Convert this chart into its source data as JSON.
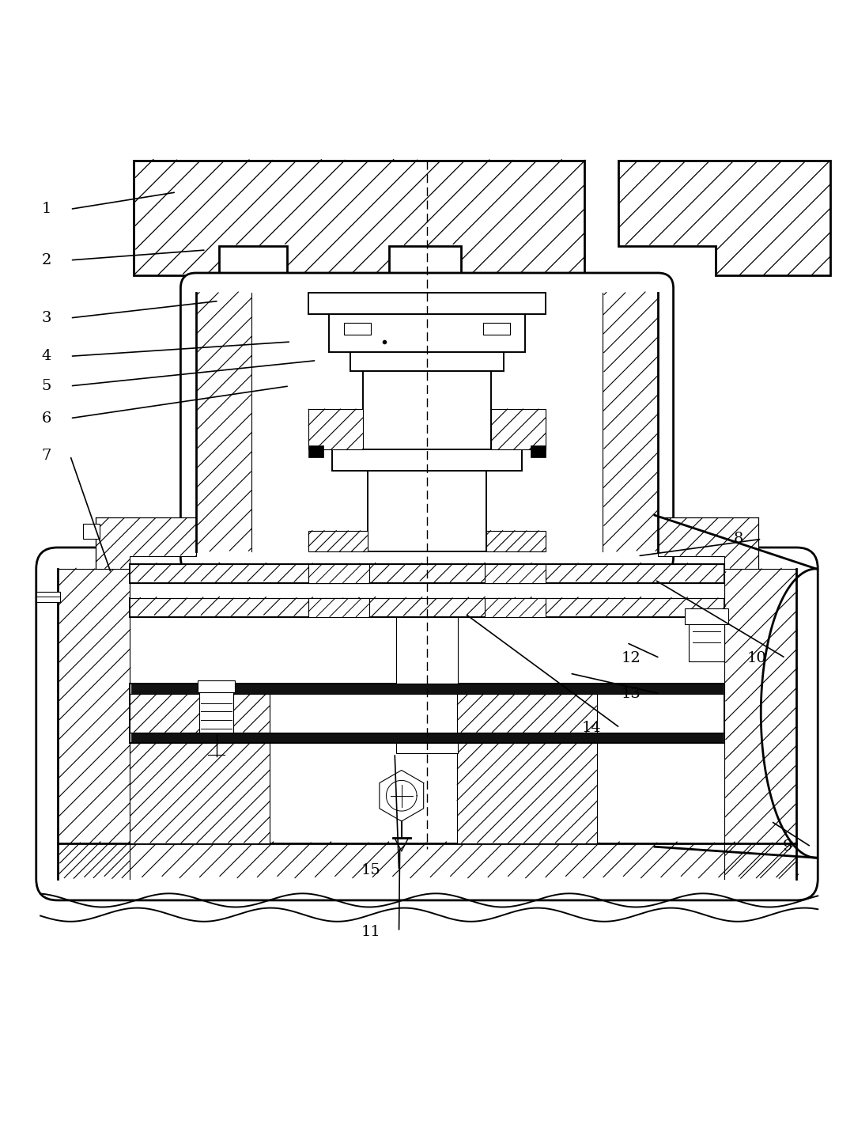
{
  "bg_color": "#ffffff",
  "line_color": "#000000",
  "fig_width": 10.8,
  "fig_height": 14.27,
  "label_data": [
    [
      1,
      0.058,
      0.918,
      0.205,
      0.938
    ],
    [
      2,
      0.058,
      0.858,
      0.24,
      0.87
    ],
    [
      3,
      0.058,
      0.79,
      0.255,
      0.81
    ],
    [
      4,
      0.058,
      0.745,
      0.34,
      0.762
    ],
    [
      5,
      0.058,
      0.71,
      0.37,
      0.74
    ],
    [
      6,
      0.058,
      0.672,
      0.338,
      0.71
    ],
    [
      7,
      0.058,
      0.628,
      0.128,
      0.49
    ],
    [
      8,
      0.872,
      0.53,
      0.748,
      0.51
    ],
    [
      9,
      0.93,
      0.168,
      0.905,
      0.198
    ],
    [
      10,
      0.9,
      0.39,
      0.768,
      0.482
    ],
    [
      11,
      0.445,
      0.068,
      0.468,
      0.168
    ],
    [
      12,
      0.752,
      0.39,
      0.735,
      0.408
    ],
    [
      13,
      0.752,
      0.348,
      0.668,
      0.372
    ],
    [
      14,
      0.705,
      0.308,
      0.545,
      0.442
    ],
    [
      15,
      0.445,
      0.14,
      0.462,
      0.278
    ]
  ]
}
